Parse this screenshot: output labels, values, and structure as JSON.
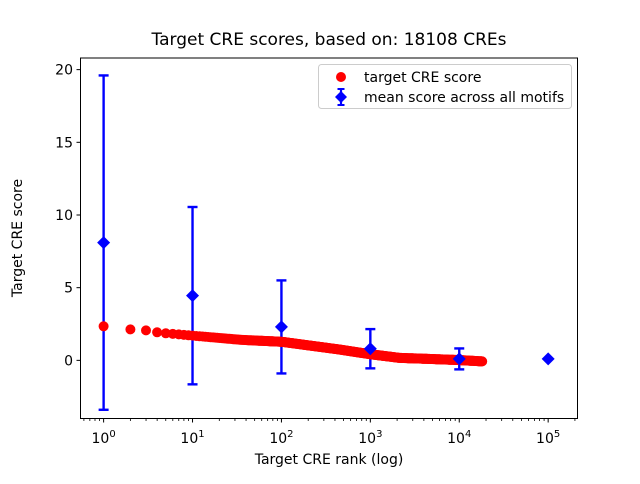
{
  "chart_data": {
    "type": "scatter",
    "title": "Target CRE scores, based on: 18108 CREs",
    "xlabel": "Target CRE rank (log)",
    "ylabel": "Target CRE score",
    "xscale": "log",
    "xlim_log10": [
      -0.26,
      5.33
    ],
    "ylim": [
      -4.0,
      20.8
    ],
    "grid": false,
    "background": "#ffffff",
    "yticks": [
      0,
      5,
      10,
      15,
      20
    ],
    "xticks": [
      {
        "value": 1,
        "base": "10",
        "exp": "0"
      },
      {
        "value": 10,
        "base": "10",
        "exp": "1"
      },
      {
        "value": 100,
        "base": "10",
        "exp": "2"
      },
      {
        "value": 1000,
        "base": "10",
        "exp": "3"
      },
      {
        "value": 10000,
        "base": "10",
        "exp": "4"
      },
      {
        "value": 100000,
        "base": "10",
        "exp": "5"
      }
    ],
    "legend_position": "upper right",
    "series": [
      {
        "name": "target CRE score",
        "marker": "circle",
        "color": "#ff0000",
        "n_total": 18108,
        "curve_anchors_log10rank_score": [
          [
            0.0,
            2.34
          ],
          [
            0.301,
            2.13
          ],
          [
            0.477,
            2.06
          ],
          [
            0.602,
            1.93
          ],
          [
            0.699,
            1.86
          ],
          [
            1.0,
            1.7
          ],
          [
            1.55,
            1.41
          ],
          [
            2.0,
            1.28
          ],
          [
            2.66,
            0.74
          ],
          [
            3.0,
            0.42
          ],
          [
            3.33,
            0.17
          ],
          [
            3.57,
            0.12
          ],
          [
            4.0,
            0.02
          ],
          [
            4.258,
            -0.07
          ]
        ]
      },
      {
        "name": "mean score across all motifs",
        "marker": "diamond",
        "color": "#0000ff",
        "points": [
          {
            "rank": 1,
            "mean": 8.1,
            "err": 11.5
          },
          {
            "rank": 10,
            "mean": 4.45,
            "err": 6.1
          },
          {
            "rank": 100,
            "mean": 2.3,
            "err": 3.2
          },
          {
            "rank": 1000,
            "mean": 0.8,
            "err": 1.35
          },
          {
            "rank": 10000,
            "mean": 0.1,
            "err": 0.72
          },
          {
            "rank": 100000,
            "mean": 0.1,
            "err": 0.0
          }
        ]
      }
    ]
  }
}
